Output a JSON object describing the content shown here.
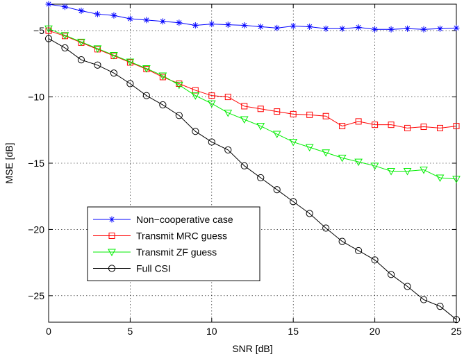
{
  "chart_data": {
    "type": "line",
    "title": "",
    "xlabel": "SNR [dB]",
    "ylabel": "MSE [dB]",
    "xlim": [
      0,
      25
    ],
    "ylim": [
      -27,
      -3
    ],
    "xticks": [
      0,
      5,
      10,
      15,
      20,
      25
    ],
    "yticks": [
      -25,
      -20,
      -15,
      -10,
      -5
    ],
    "xtick_labels": [
      "0",
      "5",
      "10",
      "15",
      "20",
      "25"
    ],
    "ytick_labels": [
      "−25",
      "−20",
      "−15",
      "−10",
      "−5"
    ],
    "grid": true,
    "legend_position": "lower-left",
    "x": [
      0,
      1,
      2,
      3,
      4,
      5,
      6,
      7,
      8,
      9,
      10,
      11,
      12,
      13,
      14,
      15,
      16,
      17,
      18,
      19,
      20,
      21,
      22,
      23,
      24,
      25
    ],
    "series": [
      {
        "name": "Non−cooperative case",
        "color": "#0000ff",
        "marker": "star",
        "values": [
          -3.0,
          -3.2,
          -3.5,
          -3.75,
          -3.85,
          -4.1,
          -4.2,
          -4.3,
          -4.4,
          -4.6,
          -4.5,
          -4.55,
          -4.6,
          -4.7,
          -4.8,
          -4.65,
          -4.7,
          -4.85,
          -4.85,
          -4.75,
          -4.9,
          -4.9,
          -4.85,
          -4.9,
          -4.85,
          -4.8
        ]
      },
      {
        "name": "Transmit MRC guess",
        "color": "#ff0000",
        "marker": "square",
        "values": [
          -5.0,
          -5.4,
          -5.9,
          -6.4,
          -6.9,
          -7.4,
          -7.9,
          -8.5,
          -9.0,
          -9.5,
          -9.9,
          -10.0,
          -10.7,
          -10.9,
          -11.1,
          -11.3,
          -11.35,
          -11.45,
          -12.2,
          -11.85,
          -12.1,
          -12.1,
          -12.35,
          -12.25,
          -12.35,
          -12.2
        ]
      },
      {
        "name": "Transmit ZF guess",
        "color": "#00ee00",
        "marker": "triangle-down",
        "values": [
          -4.85,
          -5.35,
          -5.85,
          -6.35,
          -6.85,
          -7.35,
          -7.85,
          -8.4,
          -9.1,
          -9.9,
          -10.5,
          -11.2,
          -11.7,
          -12.2,
          -12.8,
          -13.4,
          -13.8,
          -14.2,
          -14.6,
          -14.9,
          -15.2,
          -15.6,
          -15.6,
          -15.5,
          -16.1,
          -16.2
        ]
      },
      {
        "name": "Full CSI",
        "color": "#000000",
        "marker": "circle",
        "values": [
          -5.6,
          -6.3,
          -7.2,
          -7.6,
          -8.2,
          -9.0,
          -9.9,
          -10.6,
          -11.4,
          -12.6,
          -13.4,
          -14.0,
          -15.2,
          -16.1,
          -17.0,
          -17.9,
          -18.8,
          -19.9,
          -20.9,
          -21.6,
          -22.3,
          -23.4,
          -24.3,
          -25.3,
          -25.8,
          -26.8
        ]
      }
    ]
  }
}
